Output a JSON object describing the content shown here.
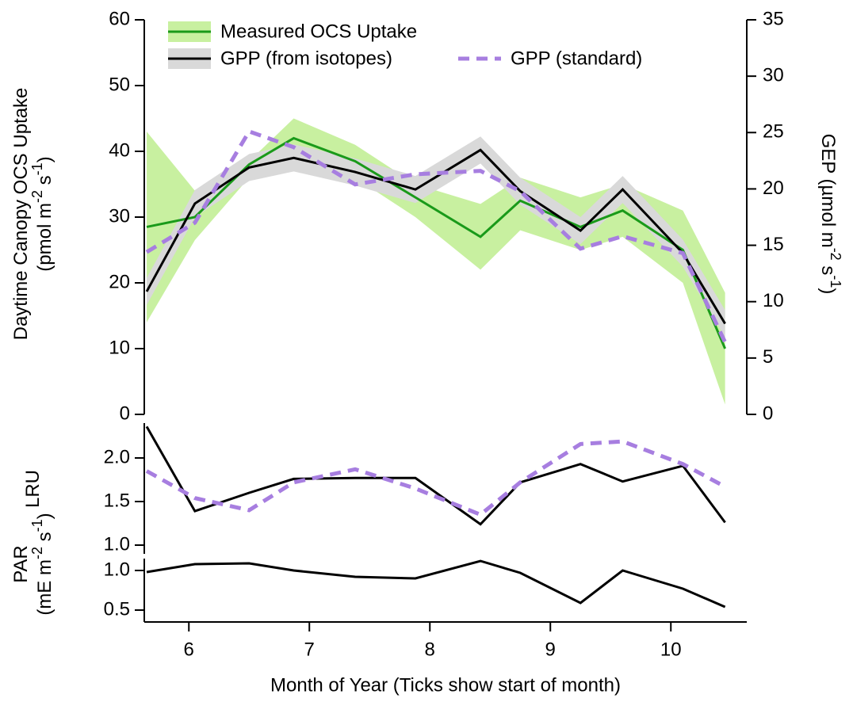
{
  "chart_data": [
    {
      "type": "line",
      "x": [
        5.65,
        6.05,
        6.5,
        6.87,
        7.38,
        7.88,
        8.42,
        8.75,
        9.25,
        9.6,
        10.1,
        10.45
      ],
      "xlim": [
        5.63,
        10.63
      ],
      "ylim": [
        0,
        60
      ],
      "yticks": [
        0,
        10,
        20,
        30,
        40,
        50,
        60
      ],
      "y2lim": [
        0,
        35
      ],
      "y2ticks": [
        0,
        5,
        10,
        15,
        20,
        25,
        30,
        35
      ],
      "ylabel": [
        [
          {
            "text": "Daytime Canopy OCS Uptake"
          }
        ],
        [
          {
            "text": "(pmol m"
          },
          {
            "text": "-2",
            "sup": true
          },
          {
            "text": " s"
          },
          {
            "text": "-1",
            "sup": true
          },
          {
            "text": ")"
          }
        ]
      ],
      "y2label": [
        [
          {
            "text": "GEP (µmol m"
          },
          {
            "text": "-2",
            "sup": true
          },
          {
            "text": " s"
          },
          {
            "text": "-1",
            "sup": true
          },
          {
            "text": ")"
          }
        ]
      ],
      "series": [
        {
          "name": "Measured OCS Uptake",
          "color": "#1a9a1a",
          "band_color": "#c8f0a0",
          "values": [
            28.5,
            30,
            38,
            42,
            38.5,
            33,
            27,
            32.5,
            28.5,
            31,
            25,
            10
          ],
          "lower": [
            14,
            26.5,
            36,
            38,
            36,
            30,
            22,
            28,
            25,
            27,
            20,
            1.5
          ],
          "upper": [
            43,
            34,
            38.5,
            45,
            41,
            35,
            32,
            36,
            33,
            35,
            31,
            18.5
          ]
        },
        {
          "name": "GPP (from isotopes)",
          "color": "#000000",
          "band_color": "#d9d9d9",
          "axis": "y2",
          "values": [
            10.9,
            18.7,
            21.9,
            22.75,
            21.5,
            19.95,
            23.45,
            19.8,
            16.3,
            19.95,
            14.3,
            8.05
          ],
          "lower": [
            9.7,
            17.5,
            20.7,
            21.55,
            20.3,
            18.75,
            22.25,
            18.6,
            15.1,
            18.75,
            13.1,
            6.85
          ],
          "upper": [
            12.1,
            19.9,
            23.1,
            23.95,
            22.7,
            21.15,
            24.65,
            21.0,
            17.5,
            21.15,
            15.5,
            9.25
          ]
        },
        {
          "name": "GPP (standard)",
          "color": "#a77ee0",
          "dash": true,
          "axis": "y2",
          "values": [
            14.4,
            17,
            25.1,
            23.7,
            20.4,
            21.3,
            21.6,
            19.8,
            14.7,
            15.8,
            14.3,
            6.4
          ]
        }
      ]
    },
    {
      "type": "line",
      "x": [
        5.65,
        6.05,
        6.5,
        6.87,
        7.38,
        7.88,
        8.42,
        8.75,
        9.25,
        9.6,
        10.1,
        10.45
      ],
      "xlim": [
        5.63,
        10.63
      ],
      "ylim": [
        0.9,
        2.4
      ],
      "yticks": [
        {
          "value": 1,
          "label": "1.0"
        },
        1.5,
        {
          "value": 2,
          "label": "2.0"
        }
      ],
      "ylabel": [
        [
          {
            "text": "LRU"
          }
        ]
      ],
      "series": [
        {
          "color": "#000000",
          "values": [
            2.36,
            1.39,
            1.6,
            1.76,
            1.77,
            1.77,
            1.24,
            1.72,
            1.93,
            1.73,
            1.91,
            1.26
          ]
        },
        {
          "color": "#a77ee0",
          "dash": true,
          "values": [
            1.85,
            1.54,
            1.4,
            1.72,
            1.87,
            1.65,
            1.35,
            1.72,
            2.16,
            2.19,
            1.93,
            1.67
          ]
        }
      ]
    },
    {
      "type": "line",
      "x": [
        5.65,
        6.05,
        6.5,
        6.87,
        7.38,
        7.88,
        8.42,
        8.75,
        9.25,
        9.6,
        10.1,
        10.45
      ],
      "xlim": [
        5.63,
        10.63
      ],
      "xticks": [
        6,
        7,
        8,
        9,
        10
      ],
      "xlabel": "Month of Year (Ticks show start of month)",
      "ylim": [
        0.35,
        1.15
      ],
      "yticks": [
        0.5,
        {
          "value": 1,
          "label": "1.0"
        }
      ],
      "ylabel": [
        [
          {
            "text": "PAR"
          }
        ],
        [
          {
            "text": "(mE m"
          },
          {
            "text": "-2",
            "sup": true
          },
          {
            "text": " s"
          },
          {
            "text": "-1",
            "sup": true
          },
          {
            "text": ")"
          }
        ]
      ],
      "series": [
        {
          "color": "#000000",
          "values": [
            0.98,
            1.08,
            1.09,
            1.0,
            0.92,
            0.9,
            1.12,
            0.97,
            0.59,
            1.0,
            0.77,
            0.54
          ]
        }
      ]
    }
  ]
}
